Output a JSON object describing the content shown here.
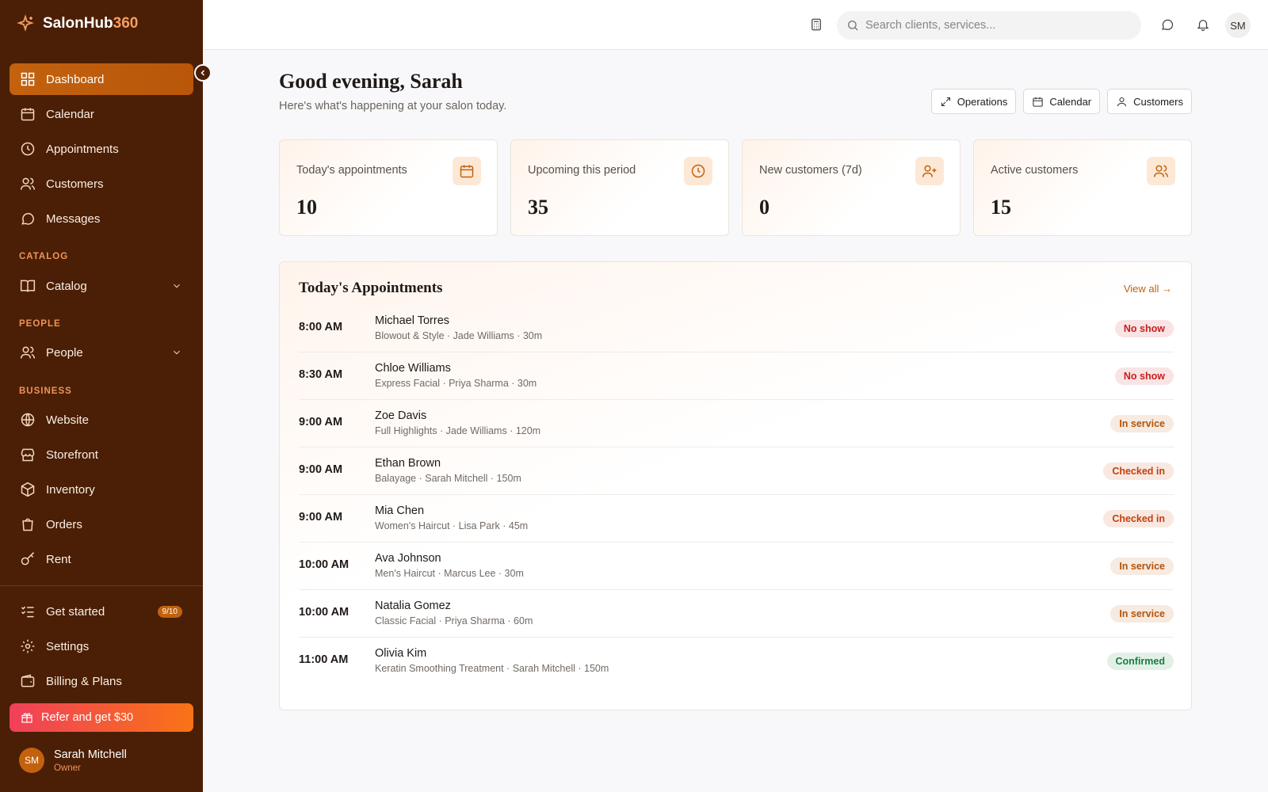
{
  "sidebar": {
    "brand": {
      "name": "SalonHub",
      "suffix": "360"
    },
    "main": [
      "Dashboard",
      "Calendar",
      "Appointments",
      "Customers",
      "Messages"
    ],
    "groups": [
      {
        "heading": "CATALOG",
        "items": [
          "Catalog"
        ]
      },
      {
        "heading": "PEOPLE",
        "items": [
          "People"
        ]
      },
      {
        "heading": "BUSINESS",
        "items": [
          "Website",
          "Storefront",
          "Inventory",
          "Orders",
          "Rent"
        ]
      }
    ],
    "footer": [
      {
        "label": "Get started",
        "badge": "9/10"
      },
      {
        "label": "Settings"
      },
      {
        "label": "Billing & Plans"
      }
    ],
    "refer": "Refer and get $30",
    "user": {
      "initials": "SM",
      "name": "Sarah Mitchell",
      "role": "Owner"
    }
  },
  "header": {
    "search_placeholder": "Search clients, services...",
    "avatar": "SM"
  },
  "main": {
    "greeting": "Good evening, Sarah",
    "subtitle": "Here's what's happening at your salon today.",
    "actions": [
      "Operations",
      "Calendar",
      "Customers"
    ],
    "stats": [
      {
        "label": "Today's appointments",
        "value": 10
      },
      {
        "label": "Upcoming this period",
        "value": 35
      },
      {
        "label": "New customers (7d)",
        "value": 0
      },
      {
        "label": "Active customers",
        "value": 15
      }
    ],
    "appointments": {
      "title": "Today's Appointments",
      "view_all": "View all",
      "rows": [
        {
          "time": "8:00 AM",
          "name": "Michael Torres",
          "detail": "Blowout & Style · Jade Williams · 30m",
          "status": "No show",
          "status_color": "#c81e1e"
        },
        {
          "time": "8:30 AM",
          "name": "Chloe Williams",
          "detail": "Express Facial · Priya Sharma · 30m",
          "status": "No show",
          "status_color": "#c81e1e"
        },
        {
          "time": "9:00 AM",
          "name": "Zoe Davis",
          "detail": "Full Highlights · Jade Williams · 120m",
          "status": "In service",
          "status_color": "#b45309"
        },
        {
          "time": "9:00 AM",
          "name": "Ethan Brown",
          "detail": "Balayage · Sarah Mitchell · 150m",
          "status": "Checked in",
          "status_color": "#c2410c"
        },
        {
          "time": "9:00 AM",
          "name": "Mia Chen",
          "detail": "Women's Haircut · Lisa Park · 45m",
          "status": "Checked in",
          "status_color": "#c2410c"
        },
        {
          "time": "10:00 AM",
          "name": "Ava Johnson",
          "detail": "Men's Haircut · Marcus Lee · 30m",
          "status": "In service",
          "status_color": "#b45309"
        },
        {
          "time": "10:00 AM",
          "name": "Natalia Gomez",
          "detail": "Classic Facial · Priya Sharma · 60m",
          "status": "In service",
          "status_color": "#b45309"
        },
        {
          "time": "11:00 AM",
          "name": "Olivia Kim",
          "detail": "Keratin Smoothing Treatment · Sarah Mitchell · 150m",
          "status": "Confirmed",
          "status_color": "#15803d"
        }
      ]
    }
  }
}
